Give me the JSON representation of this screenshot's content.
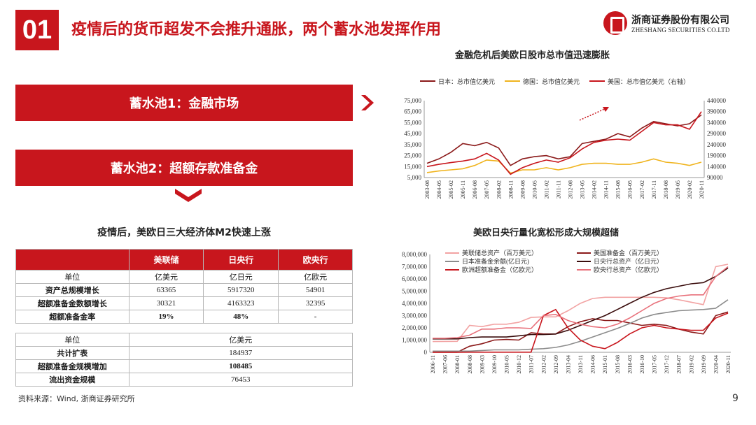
{
  "header": {
    "section_number": "01",
    "title": "疫情后的货币超发不会推升通胀，两个蓄水池发挥作用",
    "logo_cn": "浙商证券股份有限公司",
    "logo_en": "ZHESHANG SECURITIES CO.LTD"
  },
  "pools": {
    "pool1_label": "蓄水池1：金融市场",
    "pool2_label": "蓄水池2：超额存款准备金"
  },
  "table": {
    "title": "疫情后，美欧日三大经济体M2快速上涨",
    "headers": [
      "",
      "美联储",
      "日央行",
      "欧央行"
    ],
    "unit_row": [
      "单位",
      "亿美元",
      "亿日元",
      "亿欧元"
    ],
    "rows": [
      [
        "资产总规模增长",
        "63365",
        "5917320",
        "54901"
      ],
      [
        "超额准备金数额增长",
        "30321",
        "4163323",
        "32395"
      ],
      [
        "超额准备金率",
        "19%",
        "48%",
        "-"
      ]
    ],
    "sub_unit_row": [
      "单位",
      "亿美元"
    ],
    "sub_rows": [
      [
        "共计扩表",
        "184937"
      ],
      [
        "超额准备金规模增加",
        "108485"
      ],
      [
        "流出资金规模",
        "76453"
      ]
    ]
  },
  "footer": {
    "source": "资料来源：Wind, 浙商证券研究所",
    "page_number": "9"
  },
  "icons": {
    "arrow_right": "chevron-right-icon",
    "arrow_down": "chevron-down-icon",
    "logo_mark": "zheshang-logo-icon"
  },
  "colors": {
    "brand_red": "#c8161d",
    "dark_red": "#8b1a1a",
    "gold": "#f0b41e",
    "pink": "#f2a3a3",
    "gray": "#8c8c8c",
    "black_red": "#3a0d0d"
  },
  "chart_data": [
    {
      "type": "line",
      "title": "金融危机后美欧日股市总市值迅速膨胀",
      "x_ticks": [
        "2003-08",
        "2004-05",
        "2005-02",
        "2005-11",
        "2006-08",
        "2007-05",
        "2008-02",
        "2008-11",
        "2009-08",
        "2010-05",
        "2011-02",
        "2011-11",
        "2012-08",
        "2013-05",
        "2014-02",
        "2014-11",
        "2015-08",
        "2016-05",
        "2017-02",
        "2017-11",
        "2018-08",
        "2019-05",
        "2020-02",
        "2020-11"
      ],
      "ylim_left": [
        5000,
        75000
      ],
      "y_ticks_left": [
        "5,000",
        "15,000",
        "25,000",
        "35,000",
        "45,000",
        "55,000",
        "65,000",
        "75,000"
      ],
      "ylim_right": [
        90000,
        440000
      ],
      "y_ticks_right": [
        "90000",
        "140000",
        "190000",
        "240000",
        "290000",
        "340000",
        "390000",
        "440000"
      ],
      "legend_position": "top",
      "series": [
        {
          "name": "日本：总市值亿美元",
          "color": "#8b1a1a",
          "axis": "left",
          "values": [
            18000,
            22000,
            28000,
            36000,
            34000,
            37000,
            32000,
            16000,
            22000,
            24000,
            25000,
            22000,
            24000,
            36000,
            38000,
            40000,
            45000,
            42000,
            50000,
            56000,
            54000,
            52000,
            54000,
            62000
          ]
        },
        {
          "name": "德国：总市值亿美元",
          "color": "#f0b41e",
          "axis": "left",
          "values": [
            9500,
            11000,
            12000,
            13000,
            16000,
            21000,
            20000,
            9000,
            12000,
            12000,
            14000,
            12000,
            14000,
            17000,
            18000,
            18000,
            17000,
            17000,
            19000,
            22000,
            19000,
            18000,
            16000,
            19000
          ]
        },
        {
          "name": "美国：总市值亿美元（右轴）",
          "color": "#c8161d",
          "axis": "right",
          "values": [
            140000,
            150000,
            158000,
            165000,
            175000,
            200000,
            170000,
            105000,
            135000,
            155000,
            170000,
            160000,
            180000,
            220000,
            250000,
            260000,
            265000,
            260000,
            300000,
            340000,
            330000,
            330000,
            310000,
            390000
          ]
        }
      ],
      "annotation": "dotted-upward-arrow"
    },
    {
      "type": "line",
      "title": "美欧日央行量化宽松形成大规模超储",
      "x_ticks": [
        "2006-11",
        "2007-06",
        "2008-01",
        "2008-08",
        "2009-03",
        "2009-10",
        "2010-05",
        "2010-12",
        "2011-07",
        "2012-02",
        "2012-09",
        "2013-04",
        "2013-11",
        "2014-06",
        "2015-01",
        "2015-08",
        "2016-03",
        "2016-10",
        "2017-05",
        "2017-12",
        "2018-07",
        "2019-02",
        "2019-09",
        "2020-04",
        "2020-11"
      ],
      "ylim": [
        0,
        8000000
      ],
      "y_ticks": [
        "0",
        "1,000,000",
        "2,000,000",
        "3,000,000",
        "4,000,000",
        "5,000,000",
        "6,000,000",
        "7,000,000",
        "8,000,000"
      ],
      "legend_position": "top-left",
      "series": [
        {
          "name": "美联储总资产（百万美元）",
          "color": "#f2a3a3",
          "values": [
            880000,
            890000,
            900000,
            2200000,
            2100000,
            2300000,
            2300000,
            2450000,
            2850000,
            2900000,
            2900000,
            3400000,
            4000000,
            4400000,
            4500000,
            4500000,
            4500000,
            4500000,
            4500000,
            4450000,
            4300000,
            4100000,
            3900000,
            7000000,
            7200000
          ]
        },
        {
          "name": "美国准备金（百万美元）",
          "color": "#8b1a1a",
          "values": [
            10000,
            10000,
            10000,
            500000,
            700000,
            1000000,
            1050000,
            1000000,
            1600000,
            1500000,
            1500000,
            2100000,
            2500000,
            2750000,
            2600000,
            2600000,
            2400000,
            2200000,
            2300000,
            2200000,
            1900000,
            1650000,
            1500000,
            3000000,
            3300000
          ]
        },
        {
          "name": "日本准备金余额(亿日元)",
          "color": "#8c8c8c",
          "values": [
            100000,
            100000,
            100000,
            100000,
            150000,
            200000,
            200000,
            200000,
            250000,
            300000,
            400000,
            600000,
            900000,
            1250000,
            1600000,
            1950000,
            2350000,
            2800000,
            3100000,
            3250000,
            3400000,
            3450000,
            3500000,
            3600000,
            4300000
          ]
        },
        {
          "name": "日央行总资产（亿日元）",
          "color": "#3a0d0d",
          "values": [
            1100000,
            1100000,
            1100000,
            1200000,
            1250000,
            1250000,
            1250000,
            1350000,
            1450000,
            1450000,
            1500000,
            1800000,
            2200000,
            2600000,
            3000000,
            3500000,
            4000000,
            4500000,
            4900000,
            5200000,
            5400000,
            5600000,
            5700000,
            6200000,
            6900000
          ]
        },
        {
          "name": "欧洲超额准备金（亿欧元）",
          "color": "#c8161d",
          "values": [
            5000,
            5000,
            5000,
            10000,
            10000,
            10000,
            10000,
            10000,
            10000,
            3000000,
            3500000,
            2000000,
            1000000,
            500000,
            300000,
            800000,
            1500000,
            2000000,
            2200000,
            2000000,
            1900000,
            1800000,
            1800000,
            2800000,
            3200000
          ]
        },
        {
          "name": "欧央行总资产（亿欧元）",
          "color": "#e8707a",
          "values": [
            1150000,
            1150000,
            1200000,
            1400000,
            1900000,
            1900000,
            2000000,
            2000000,
            1950000,
            3000000,
            3100000,
            2600000,
            2300000,
            2100000,
            2000000,
            2300000,
            2800000,
            3400000,
            4000000,
            4400000,
            4600000,
            4700000,
            4700000,
            6200000,
            7000000
          ]
        }
      ]
    }
  ]
}
